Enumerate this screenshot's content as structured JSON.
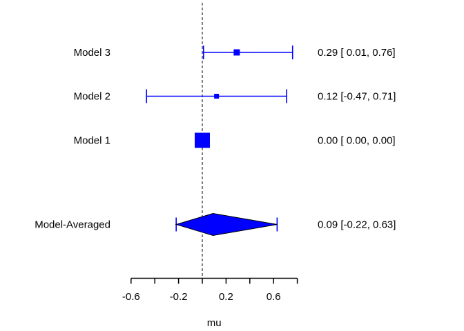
{
  "chart_data": {
    "type": "forest",
    "title": "",
    "xlabel": "mu",
    "xlim": [
      -0.6,
      0.8
    ],
    "x_ticks": [
      -0.6,
      -0.4,
      -0.2,
      0.0,
      0.2,
      0.4,
      0.6,
      0.8
    ],
    "x_tick_labels": [
      {
        "value": -0.6,
        "label": "-0.6"
      },
      {
        "value": -0.2,
        "label": "-0.2"
      },
      {
        "value": 0.2,
        "label": "0.2"
      },
      {
        "value": 0.6,
        "label": "0.6"
      }
    ],
    "reference_line_x": 0,
    "grid": false,
    "legend": "none",
    "rows": [
      {
        "label": "Model 3",
        "estimate": 0.29,
        "ci_lower": 0.01,
        "ci_upper": 0.76,
        "annotation": "0.29 [ 0.01, 0.76]",
        "marker": "square",
        "marker_size": 9
      },
      {
        "label": "Model 2",
        "estimate": 0.12,
        "ci_lower": -0.47,
        "ci_upper": 0.71,
        "annotation": "0.12 [-0.47, 0.71]",
        "marker": "square",
        "marker_size": 7
      },
      {
        "label": "Model 1",
        "estimate": 0.0,
        "ci_lower": 0.0,
        "ci_upper": 0.0,
        "annotation": "0.00 [ 0.00, 0.00]",
        "marker": "square",
        "marker_size": 22
      },
      {
        "label": "Model-Averaged",
        "estimate": 0.09,
        "ci_lower": -0.22,
        "ci_upper": 0.63,
        "annotation": "0.09 [-0.22, 0.63]",
        "marker": "diamond",
        "marker_size": 16
      }
    ],
    "colors": {
      "marker_fill": "#0000ff",
      "ci_line": "#0000ff",
      "diamond_outline": "#000000",
      "axis": "#000000",
      "text": "#000000",
      "reference_line": "#000000",
      "background": "#ffffff"
    }
  }
}
